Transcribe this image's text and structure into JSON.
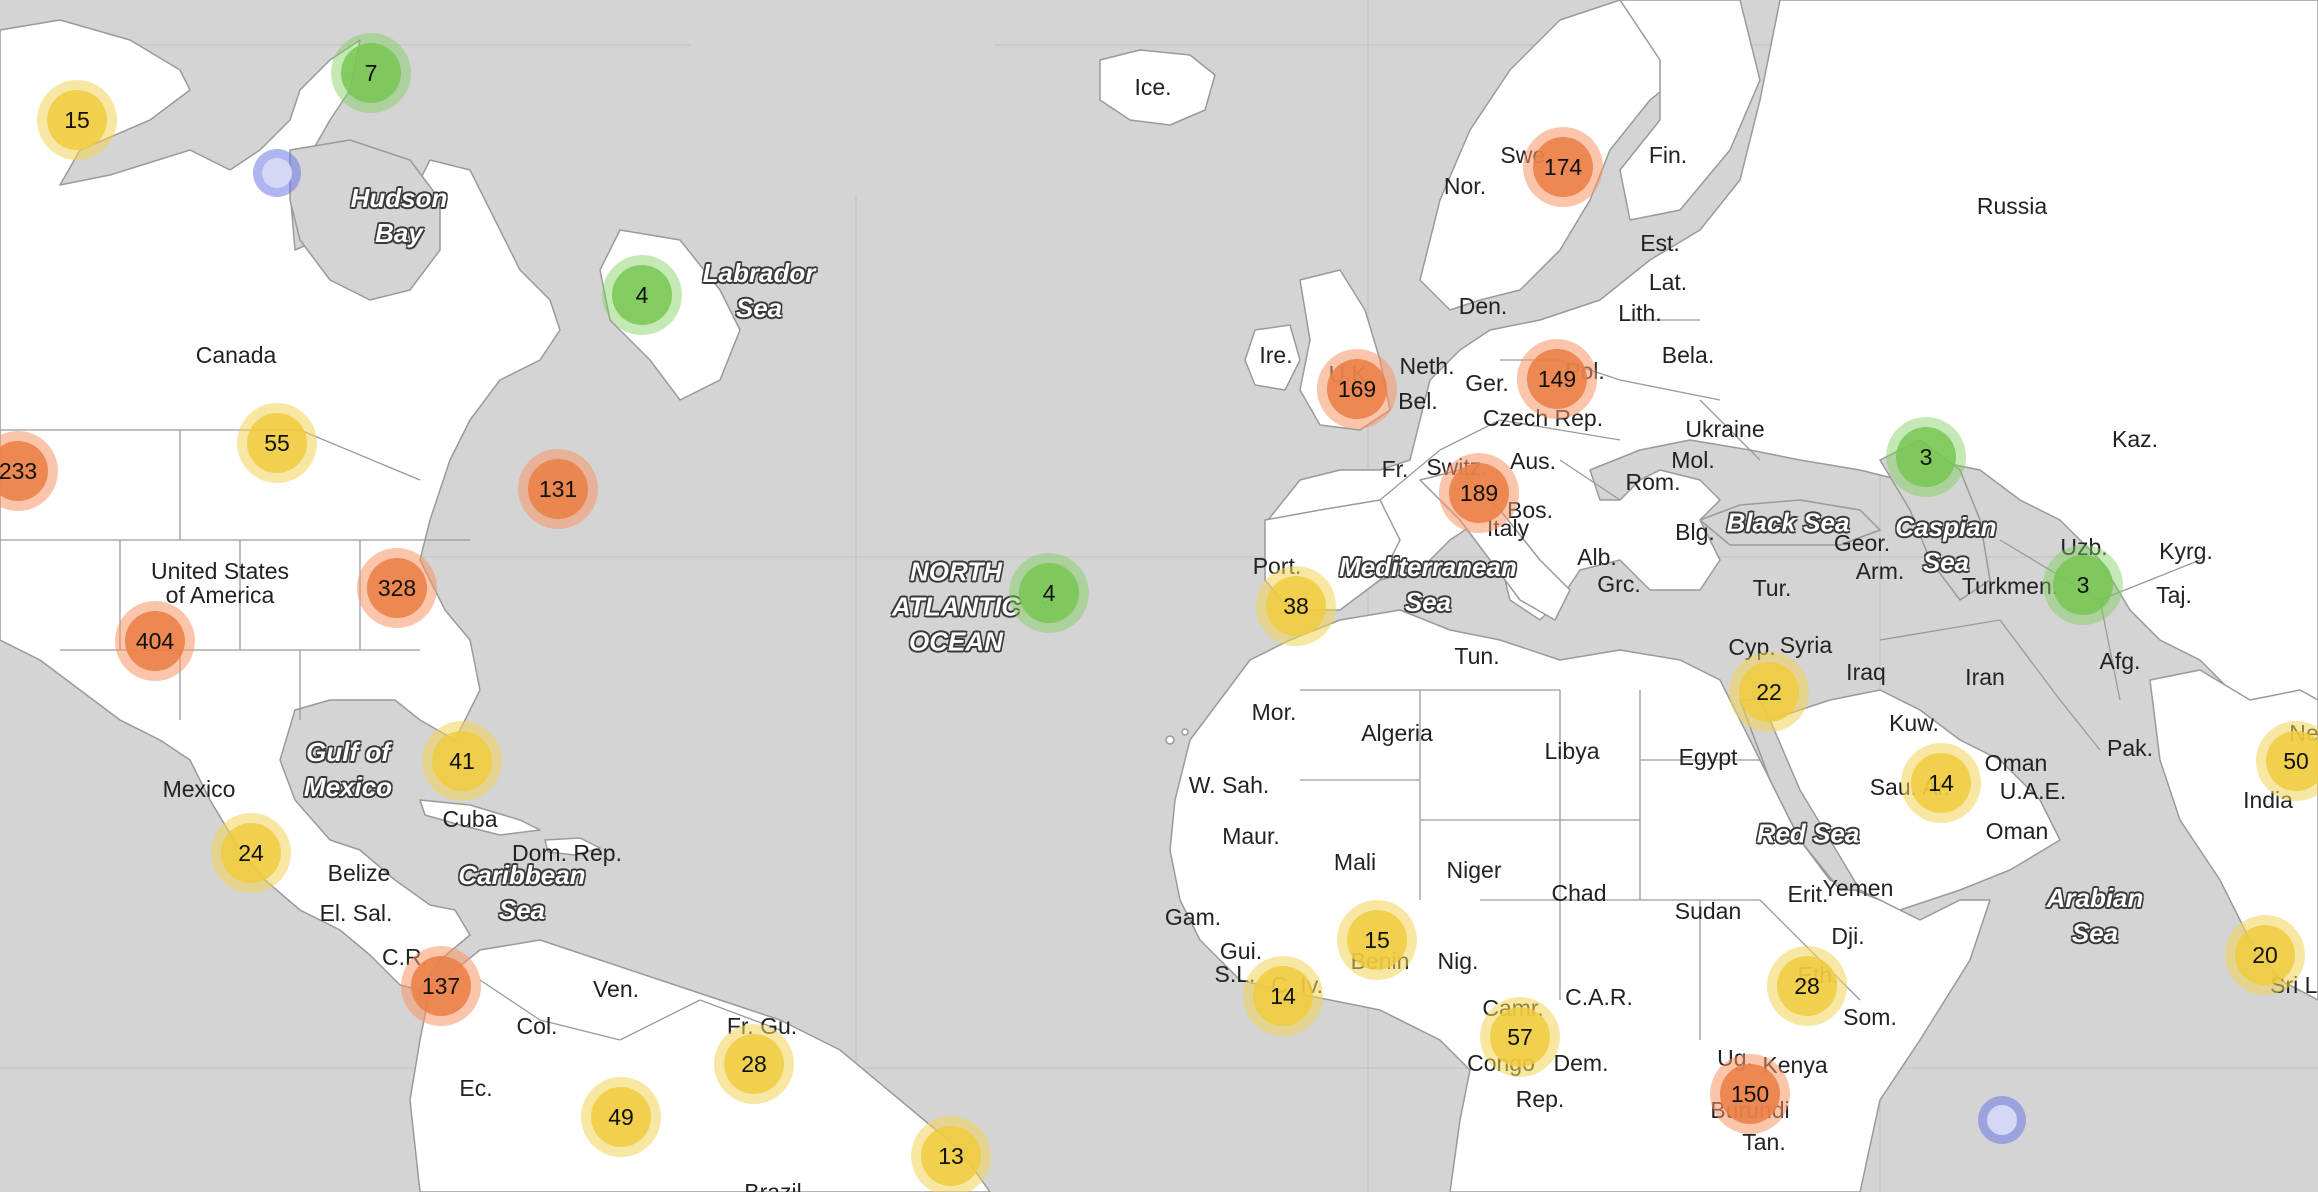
{
  "map": {
    "colors": {
      "land": "#ffffff",
      "water": "#d4d4d4",
      "border": "#9a9a9a",
      "grid": "#c4c4c4"
    },
    "country_labels": [
      {
        "text": "Ice."
      },
      {
        "text": "Nor."
      },
      {
        "text": "Swe."
      },
      {
        "text": "Fin."
      },
      {
        "text": "Russia"
      },
      {
        "text": "Est."
      },
      {
        "text": "Lat."
      },
      {
        "text": "Lith."
      },
      {
        "text": "Den."
      },
      {
        "text": "Bela."
      },
      {
        "text": "Ire."
      },
      {
        "text": "U.K."
      },
      {
        "text": "Neth."
      },
      {
        "text": "Bel."
      },
      {
        "text": "Ger."
      },
      {
        "text": "Pol."
      },
      {
        "text": "Czech Rep."
      },
      {
        "text": "Ukraine"
      },
      {
        "text": "Fr."
      },
      {
        "text": "Switz."
      },
      {
        "text": "Aus."
      },
      {
        "text": "Mol."
      },
      {
        "text": "Rom."
      },
      {
        "text": "Bos."
      },
      {
        "text": "Italy"
      },
      {
        "text": "Blg."
      },
      {
        "text": "Alb."
      },
      {
        "text": "Grc."
      },
      {
        "text": "Port."
      },
      {
        "text": "Tur."
      },
      {
        "text": "Geor."
      },
      {
        "text": "Arm."
      },
      {
        "text": "Kaz."
      },
      {
        "text": "Uzb."
      },
      {
        "text": "Kyrg."
      },
      {
        "text": "Turkmen."
      },
      {
        "text": "Taj."
      },
      {
        "text": "Cyp."
      },
      {
        "text": "Syria"
      },
      {
        "text": "Iraq"
      },
      {
        "text": "Iran"
      },
      {
        "text": "Afg."
      },
      {
        "text": "Tun."
      },
      {
        "text": "Mor."
      },
      {
        "text": "Algeria"
      },
      {
        "text": "Libya"
      },
      {
        "text": "Egypt"
      },
      {
        "text": "Kuw."
      },
      {
        "text": "Sau. Ar."
      },
      {
        "text": "U.A.E."
      },
      {
        "text": "Oman"
      },
      {
        "text": "Oman"
      },
      {
        "text": "Pak."
      },
      {
        "text": "India"
      },
      {
        "text": "W. Sah."
      },
      {
        "text": "Maur."
      },
      {
        "text": "Mali"
      },
      {
        "text": "Niger"
      },
      {
        "text": "Chad"
      },
      {
        "text": "Sudan"
      },
      {
        "text": "Erit."
      },
      {
        "text": "Yemen"
      },
      {
        "text": "Dji."
      },
      {
        "text": "Gam."
      },
      {
        "text": "Gui."
      },
      {
        "text": "S.L."
      },
      {
        "text": "C. Iv."
      },
      {
        "text": "Benin"
      },
      {
        "text": "Nig."
      },
      {
        "text": "C.A.R."
      },
      {
        "text": "Eth."
      },
      {
        "text": "Som."
      },
      {
        "text": "Camr."
      },
      {
        "text": "Congo"
      },
      {
        "text": "Dem."
      },
      {
        "text": "Rep."
      },
      {
        "text": "Ug."
      },
      {
        "text": "Kenya"
      },
      {
        "text": "Burundi"
      },
      {
        "text": "Tan."
      },
      {
        "text": "Sri L."
      },
      {
        "text": "Ne"
      },
      {
        "text": "Canada"
      },
      {
        "text": "United States\nof America"
      },
      {
        "text": "Mexico"
      },
      {
        "text": "Cuba"
      },
      {
        "text": "Dom. Rep."
      },
      {
        "text": "Belize"
      },
      {
        "text": "El. Sal."
      },
      {
        "text": "C.R."
      },
      {
        "text": "Ven."
      },
      {
        "text": "Col."
      },
      {
        "text": "Fr. Gu."
      },
      {
        "text": "Ec."
      },
      {
        "text": "Brazil"
      }
    ],
    "sea_labels": [
      {
        "text": "Hudson\nBay"
      },
      {
        "text": "Labrador\nSea"
      },
      {
        "text": "NORTH\nATLANTIC\nOCEAN"
      },
      {
        "text": "Gulf of\nMexico"
      },
      {
        "text": "Caribbean\nSea"
      },
      {
        "text": "Mediterranean\nSea"
      },
      {
        "text": "Black Sea"
      },
      {
        "text": "Caspian\nSea"
      },
      {
        "text": "Red Sea"
      },
      {
        "text": "Arabian\nSea"
      }
    ],
    "clusters": [
      {
        "count": "174",
        "size": "large"
      },
      {
        "count": "169",
        "size": "large"
      },
      {
        "count": "149",
        "size": "large"
      },
      {
        "count": "189",
        "size": "large"
      },
      {
        "count": "38",
        "size": "medium"
      },
      {
        "count": "4",
        "size": "small"
      },
      {
        "count": "22",
        "size": "medium"
      },
      {
        "count": "3",
        "size": "small"
      },
      {
        "count": "3",
        "size": "small"
      },
      {
        "count": "14",
        "size": "medium"
      },
      {
        "count": "50",
        "size": "medium"
      },
      {
        "count": "20",
        "size": "medium"
      },
      {
        "count": "15",
        "size": "medium"
      },
      {
        "count": "14",
        "size": "medium"
      },
      {
        "count": "57",
        "size": "medium"
      },
      {
        "count": "28",
        "size": "medium"
      },
      {
        "count": "150",
        "size": "large"
      },
      {
        "count": "15",
        "size": "medium"
      },
      {
        "count": "7",
        "size": "small"
      },
      {
        "count": "4",
        "size": "small"
      },
      {
        "count": "55",
        "size": "medium"
      },
      {
        "count": "233",
        "size": "large"
      },
      {
        "count": "131",
        "size": "large"
      },
      {
        "count": "328",
        "size": "large"
      },
      {
        "count": "404",
        "size": "large"
      },
      {
        "count": "41",
        "size": "medium"
      },
      {
        "count": "24",
        "size": "medium"
      },
      {
        "count": "137",
        "size": "large"
      },
      {
        "count": "28",
        "size": "medium"
      },
      {
        "count": "49",
        "size": "medium"
      },
      {
        "count": "13",
        "size": "medium"
      }
    ]
  }
}
